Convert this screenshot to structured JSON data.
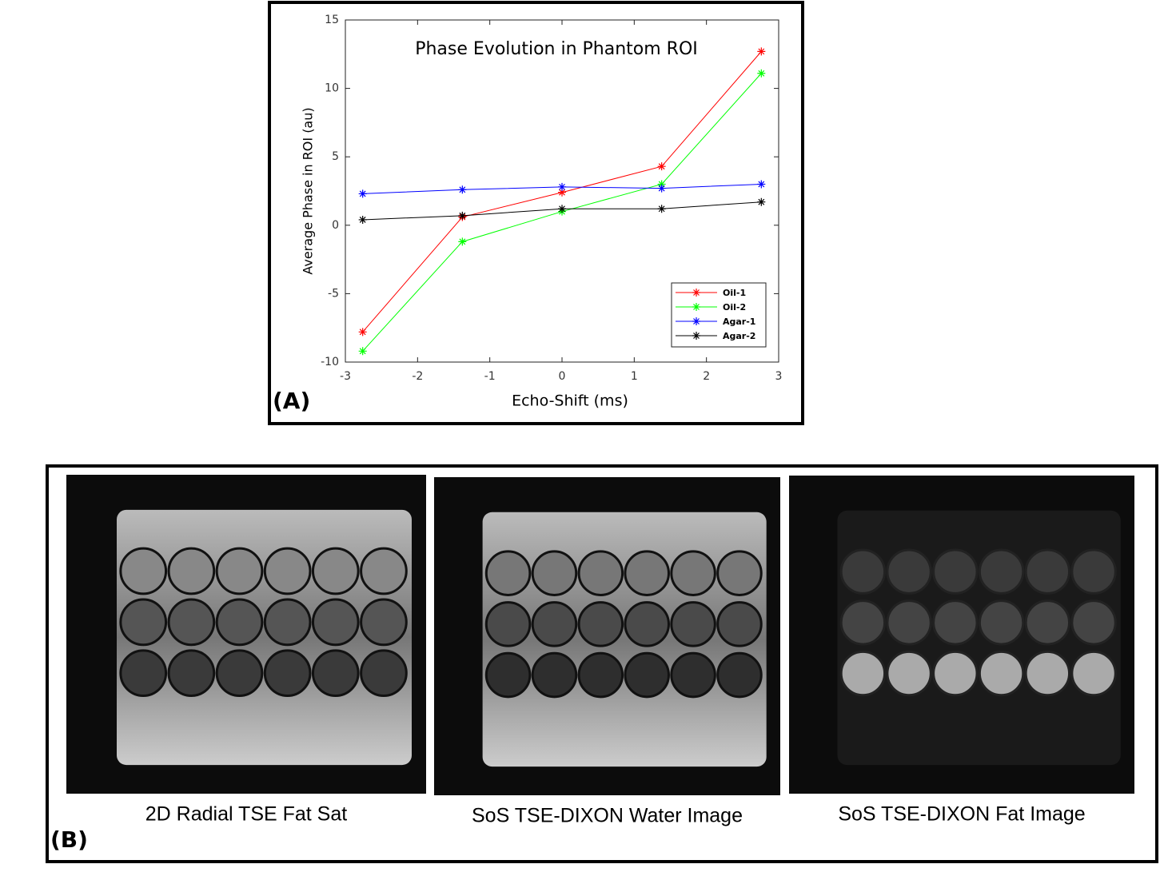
{
  "chart_data": {
    "type": "line",
    "title": "Phase Evolution in Phantom ROI",
    "x_label": "Echo-Shift (ms)",
    "y_label": "Average Phase in ROI (au)",
    "x": [
      -2.76,
      -1.38,
      0,
      1.38,
      2.76
    ],
    "series": [
      {
        "name": "Oil-1",
        "color": "#ff0000",
        "values": [
          -7.8,
          0.6,
          2.4,
          4.3,
          12.7
        ]
      },
      {
        "name": "Oil-2",
        "color": "#00ff00",
        "values": [
          -9.2,
          -1.2,
          1.0,
          3.0,
          11.1
        ]
      },
      {
        "name": "Agar-1",
        "color": "#0000ff",
        "values": [
          2.3,
          2.6,
          2.8,
          2.7,
          3.0
        ]
      },
      {
        "name": "Agar-2",
        "color": "#000000",
        "values": [
          0.4,
          0.7,
          1.2,
          1.2,
          1.7
        ]
      }
    ],
    "xlim": [
      -3,
      3
    ],
    "xticks": [
      -3,
      -2,
      -1,
      0,
      1,
      2,
      3
    ],
    "ylim": [
      -10,
      15
    ],
    "yticks": [
      -10,
      -5,
      0,
      5,
      10,
      15
    ],
    "legend": "lower right",
    "grid": false
  },
  "panel_a_label": "(A)",
  "panel_b": {
    "label": "(B)",
    "captions": [
      "2D Radial TSE Fat Sat",
      "SoS TSE-DIXON Water Image",
      "SoS TSE-DIXON Fat Image"
    ]
  }
}
